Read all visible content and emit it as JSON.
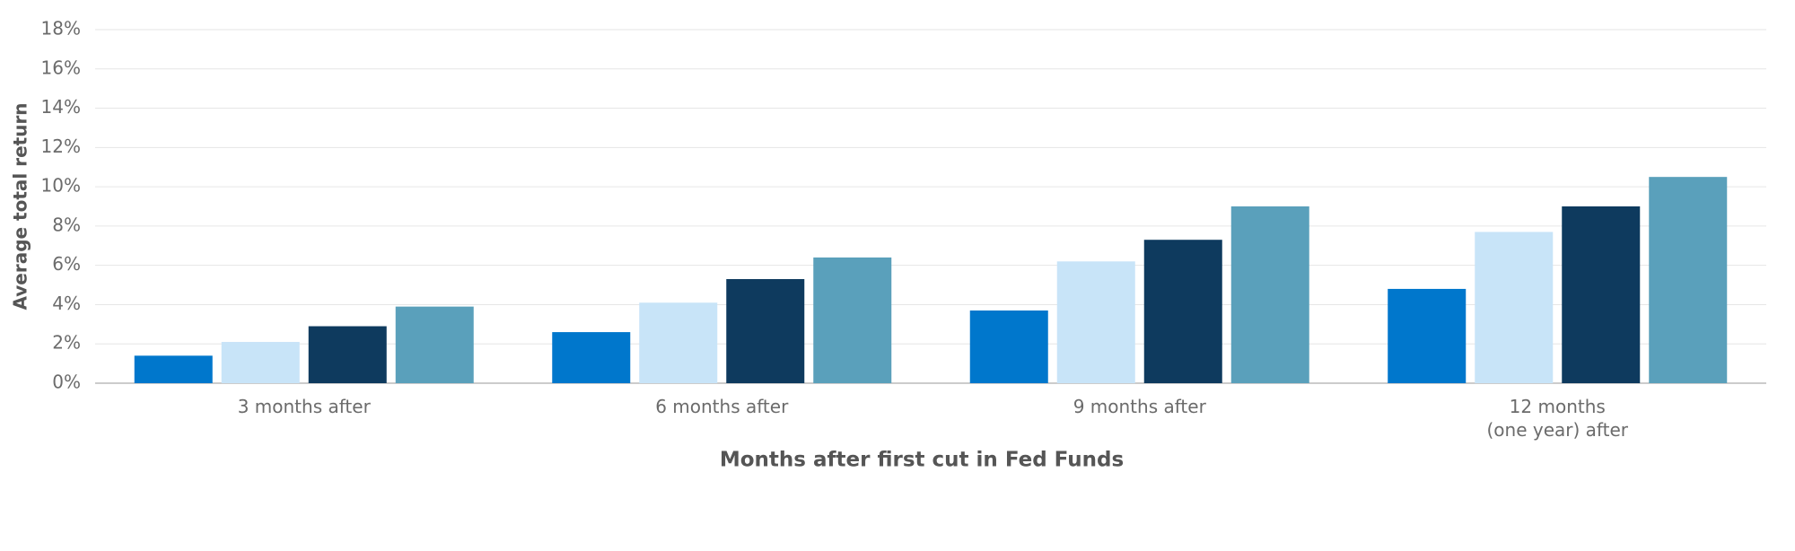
{
  "chart_data": {
    "type": "bar",
    "x_label": "Months after first cut in Fed Funds",
    "y_label": "Average total return",
    "categories": [
      "3 months after",
      "6 months after",
      "9 months after",
      "12 months\n(one year) after"
    ],
    "series": [
      {
        "color": "#0077cc",
        "values": [
          1.4,
          2.6,
          3.7,
          4.8
        ]
      },
      {
        "color": "#c8e4f8",
        "values": [
          2.1,
          4.1,
          6.2,
          7.7
        ]
      },
      {
        "color": "#0e3a5e",
        "values": [
          2.9,
          5.3,
          7.3,
          9.0
        ]
      },
      {
        "color": "#5aa0bb",
        "values": [
          3.9,
          6.4,
          9.0,
          10.5
        ]
      }
    ],
    "ylim": [
      0,
      18
    ],
    "yticks": [
      {
        "value": 0,
        "label": "0%"
      },
      {
        "value": 2,
        "label": "2%"
      },
      {
        "value": 4,
        "label": "4%"
      },
      {
        "value": 6,
        "label": "6%"
      },
      {
        "value": 8,
        "label": "8%"
      },
      {
        "value": 10,
        "label": "10%"
      },
      {
        "value": 12,
        "label": "12%"
      },
      {
        "value": 14,
        "label": "14%"
      },
      {
        "value": 16,
        "label": "16%"
      },
      {
        "value": 18,
        "label": "18%"
      }
    ],
    "grid": true
  }
}
